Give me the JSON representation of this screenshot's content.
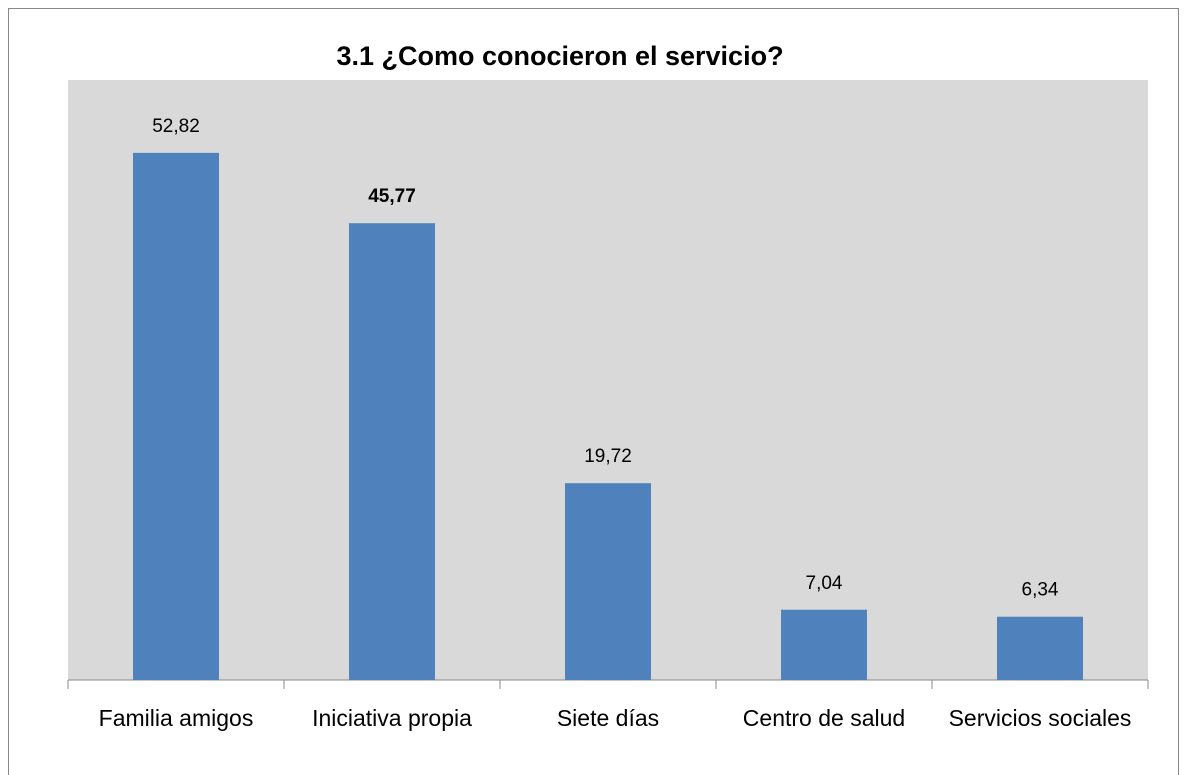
{
  "chart_data": {
    "type": "bar",
    "title": "3.1 ¿Como conocieron el servicio?",
    "categories": [
      "Familia amigos",
      "Iniciativa propia",
      "Siete días",
      "Centro de salud",
      "Servicios sociales"
    ],
    "values": [
      52.82,
      45.77,
      19.72,
      7.04,
      6.34
    ],
    "value_labels": [
      "52,82",
      "45,77",
      "19,72",
      "7,04",
      "6,34"
    ],
    "value_label_bold": [
      false,
      true,
      false,
      false,
      false
    ],
    "color": "#4f81bd"
  }
}
